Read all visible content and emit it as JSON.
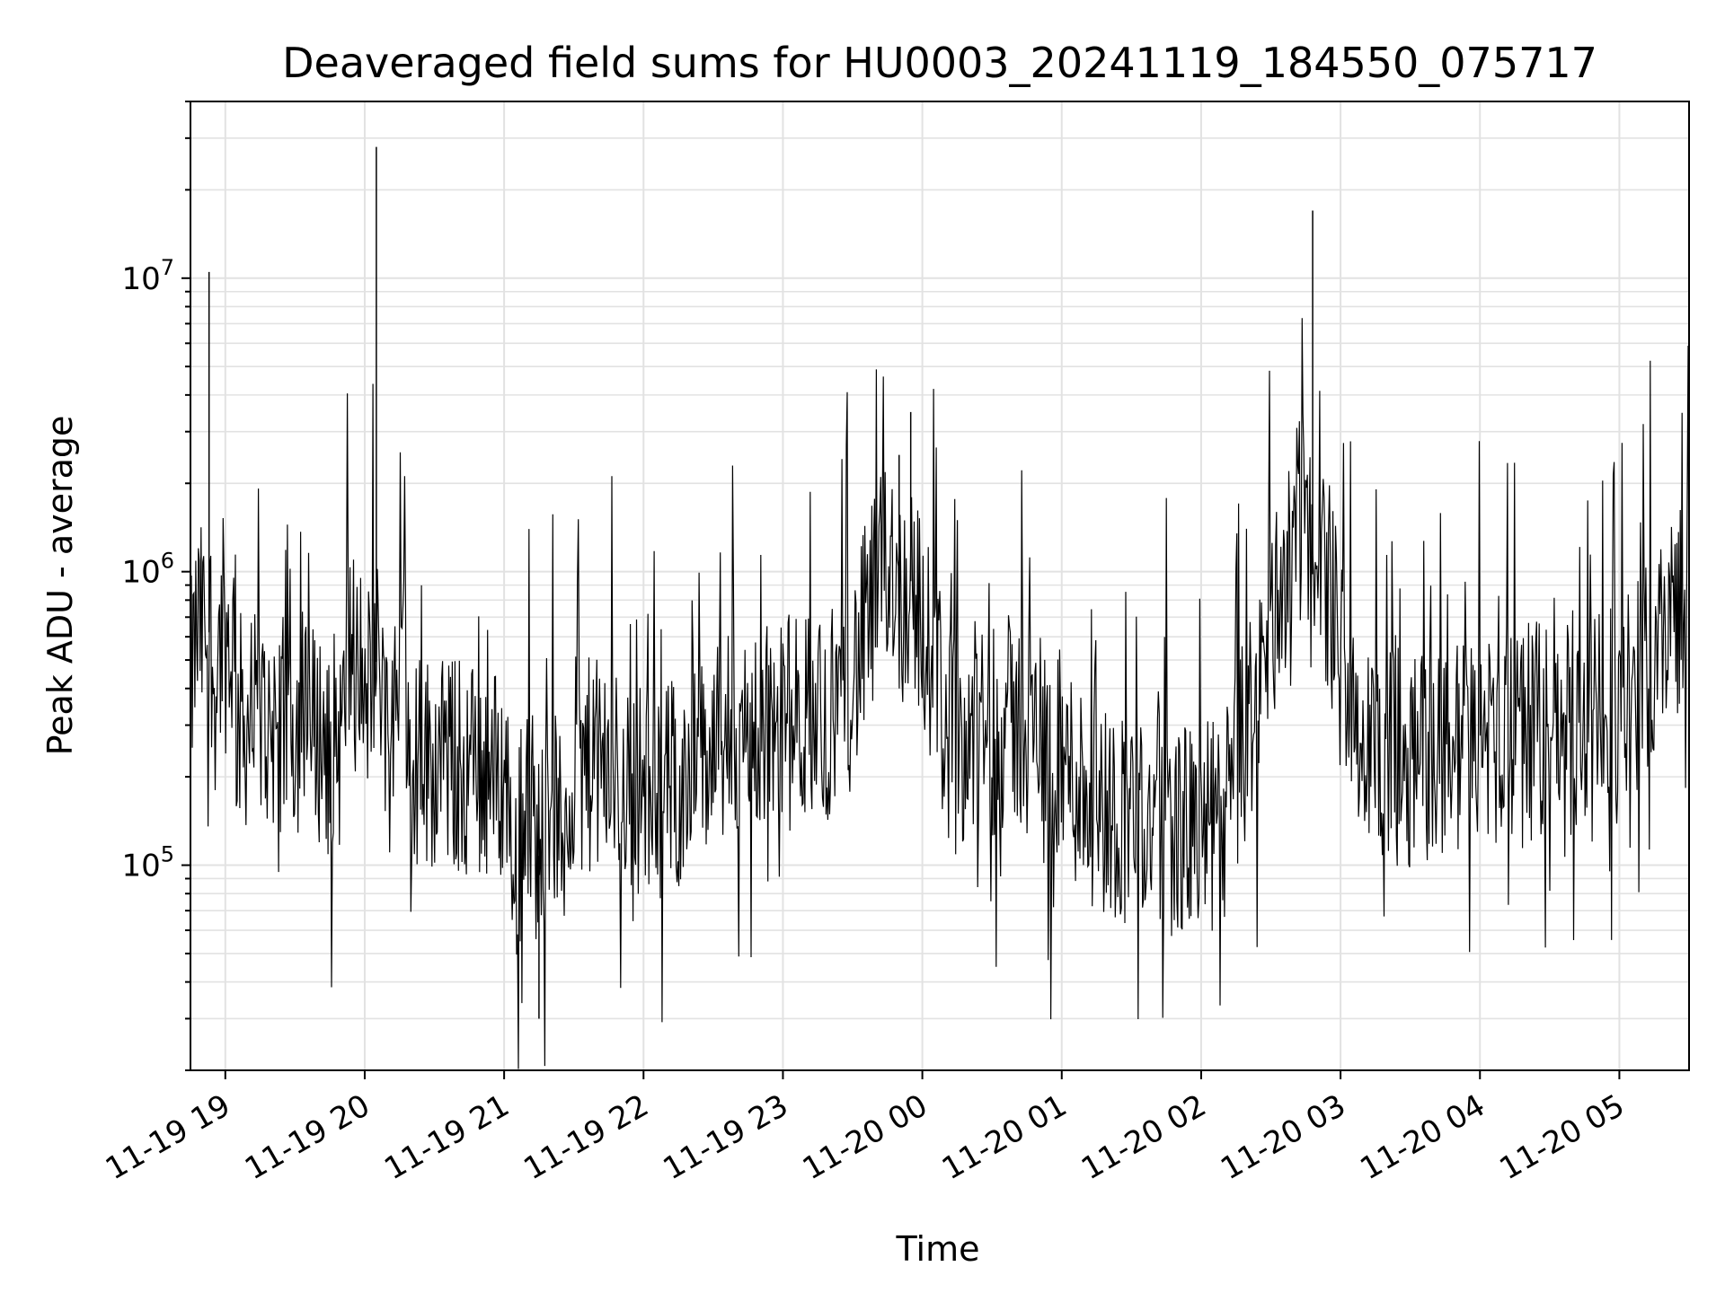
{
  "chart_data": {
    "type": "line",
    "title": "Deaveraged field sums for HU0003_20241119_184550_075717",
    "xlabel": "Time",
    "ylabel": "Peak ADU - average",
    "yscale": "log",
    "ylim": [
      20000,
      40000000
    ],
    "xlim": [
      "2024-11-19 18:45",
      "2024-11-20 05:30"
    ],
    "grid": true,
    "line_color": "#000000",
    "y_ticks": [
      {
        "base": "10",
        "exp": "5",
        "value": 100000
      },
      {
        "base": "10",
        "exp": "6",
        "value": 1000000
      },
      {
        "base": "10",
        "exp": "7",
        "value": 10000000
      }
    ],
    "x_ticks": [
      {
        "label": "11-19 19",
        "time": "2024-11-19 19:00"
      },
      {
        "label": "11-19 20",
        "time": "2024-11-19 20:00"
      },
      {
        "label": "11-19 21",
        "time": "2024-11-19 21:00"
      },
      {
        "label": "11-19 22",
        "time": "2024-11-19 22:00"
      },
      {
        "label": "11-19 23",
        "time": "2024-11-19 23:00"
      },
      {
        "label": "11-20 00",
        "time": "2024-11-20 00:00"
      },
      {
        "label": "11-20 01",
        "time": "2024-11-20 01:00"
      },
      {
        "label": "11-20 02",
        "time": "2024-11-20 02:00"
      },
      {
        "label": "11-20 03",
        "time": "2024-11-20 03:00"
      },
      {
        "label": "11-20 04",
        "time": "2024-11-20 04:00"
      },
      {
        "label": "11-20 05",
        "time": "2024-11-20 05:00"
      }
    ],
    "series": [
      {
        "x": [
          "2024-11-19 18:45",
          "2024-11-19 18:47",
          "2024-11-19 18:53",
          "2024-11-19 18:55",
          "2024-11-19 19:00",
          "2024-11-19 19:10",
          "2024-11-19 19:20",
          "2024-11-19 19:30",
          "2024-11-19 19:43",
          "2024-11-19 19:50",
          "2024-11-19 20:00",
          "2024-11-19 20:05",
          "2024-11-19 20:10",
          "2024-11-19 20:20",
          "2024-11-19 20:30",
          "2024-11-19 20:40",
          "2024-11-19 20:50",
          "2024-11-19 21:00",
          "2024-11-19 21:10",
          "2024-11-19 21:15",
          "2024-11-19 21:20",
          "2024-11-19 21:30",
          "2024-11-19 21:40",
          "2024-11-19 21:50",
          "2024-11-19 22:00",
          "2024-11-19 22:10",
          "2024-11-19 22:20",
          "2024-11-19 22:30",
          "2024-11-19 22:40",
          "2024-11-19 22:50",
          "2024-11-19 23:00",
          "2024-11-19 23:10",
          "2024-11-19 23:20",
          "2024-11-19 23:30",
          "2024-11-19 23:40",
          "2024-11-19 23:50",
          "2024-11-19 23:55",
          "2024-11-20 00:00",
          "2024-11-20 00:10",
          "2024-11-20 00:20",
          "2024-11-20 00:30",
          "2024-11-20 00:40",
          "2024-11-20 00:50",
          "2024-11-20 01:00",
          "2024-11-20 01:10",
          "2024-11-20 01:20",
          "2024-11-20 01:30",
          "2024-11-20 01:40",
          "2024-11-20 01:50",
          "2024-11-20 02:00",
          "2024-11-20 02:10",
          "2024-11-20 02:20",
          "2024-11-20 02:30",
          "2024-11-20 02:40",
          "2024-11-20 02:48",
          "2024-11-20 03:00",
          "2024-11-20 03:10",
          "2024-11-20 03:20",
          "2024-11-20 03:30",
          "2024-11-20 03:40",
          "2024-11-20 03:50",
          "2024-11-20 04:00",
          "2024-11-20 04:10",
          "2024-11-20 04:20",
          "2024-11-20 04:30",
          "2024-11-20 04:40",
          "2024-11-20 04:50",
          "2024-11-20 05:00",
          "2024-11-20 05:10",
          "2024-11-20 05:20",
          "2024-11-20 05:30"
        ],
        "y": [
          400000,
          1300000,
          10500000,
          350000,
          300000,
          300000,
          320000,
          300000,
          280000,
          260000,
          250000,
          28000000,
          240000,
          230000,
          220000,
          230000,
          210000,
          200000,
          190000,
          30000,
          200000,
          230000,
          220000,
          200000,
          170000,
          180000,
          200000,
          250000,
          270000,
          300000,
          300000,
          320000,
          330000,
          350000,
          700000,
          2500000,
          3500000,
          300000,
          280000,
          270000,
          300000,
          320000,
          300000,
          250000,
          150000,
          160000,
          140000,
          150000,
          130000,
          120000,
          130000,
          200000,
          1000000,
          800000,
          17000000,
          250000,
          240000,
          230000,
          230000,
          240000,
          250000,
          270000,
          280000,
          280000,
          290000,
          300000,
          300000,
          300000,
          400000,
          700000,
          1000000
        ]
      }
    ]
  }
}
